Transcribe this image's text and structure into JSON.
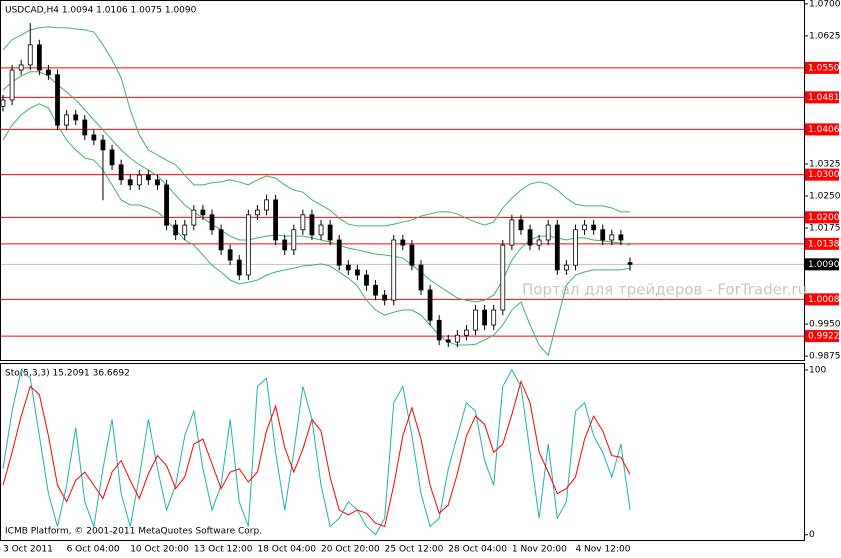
{
  "chart_data": [
    {
      "type": "candlestick",
      "title": "USDCAD,H4  1.0094 1.0106 1.0075 1.0090",
      "categories": [
        "3 Oct 2011",
        null,
        null,
        null,
        null,
        null,
        null,
        "6 Oct 04:00",
        null,
        null,
        null,
        null,
        null,
        null,
        "10 Oct 20:00",
        null,
        null,
        null,
        null,
        null,
        null,
        "13 Oct 12:00",
        null,
        null,
        null,
        null,
        null,
        null,
        "18 Oct 04:00",
        null,
        null,
        null,
        null,
        null,
        null,
        "20 Oct 20:00",
        null,
        null,
        null,
        null,
        null,
        null,
        "25 Oct 12:00",
        null,
        null,
        null,
        null,
        null,
        null,
        "28 Oct 04:00",
        null,
        null,
        null,
        null,
        null,
        null,
        "1 Nov 20:00",
        null,
        null,
        null,
        null,
        null,
        null,
        "4 Nov 12:00",
        null,
        null,
        null,
        null,
        null,
        null
      ],
      "open": [
        1.046,
        1.0475,
        1.0545,
        1.0557,
        1.0604,
        1.0545,
        1.0534,
        1.0416,
        1.044,
        1.0428,
        1.0393,
        1.0381,
        1.0358,
        1.0323,
        1.0288,
        1.0276,
        1.0299,
        1.0288,
        1.0276,
        1.0182,
        1.0159,
        1.0182,
        1.0217,
        1.0206,
        1.0171,
        1.0124,
        1.01,
        1.0065,
        1.0206,
        1.0217,
        1.0241,
        1.0147,
        1.0124,
        1.0171,
        1.0206,
        1.0159,
        1.0182,
        1.0147,
        1.0088,
        1.0077,
        1.0065,
        1.0041,
        1.0018,
        1.0006,
        1.0147,
        1.0135,
        1.0088,
        1.003,
        0.9959,
        0.9913,
        0.9908,
        0.9924,
        0.9936,
        0.9983,
        0.9948,
        0.9983,
        1.0135,
        1.0194,
        1.0171,
        1.0135,
        1.0147,
        1.0182,
        1.0077,
        1.0088,
        1.0171,
        1.0182,
        1.0171,
        1.0147,
        1.0159,
        1.0094
      ],
      "high": [
        1.0487,
        1.0557,
        1.0569,
        1.0655,
        1.0616,
        1.0557,
        1.0546,
        1.0452,
        1.0452,
        1.044,
        1.0405,
        1.0393,
        1.037,
        1.0335,
        1.03,
        1.0311,
        1.0311,
        1.03,
        1.0288,
        1.0194,
        1.0194,
        1.0229,
        1.0229,
        1.0218,
        1.0183,
        1.0136,
        1.0112,
        1.0218,
        1.0229,
        1.0253,
        1.0253,
        1.0159,
        1.0183,
        1.0218,
        1.0218,
        1.0194,
        1.0194,
        1.0159,
        1.01,
        1.0089,
        1.0077,
        1.0053,
        1.003,
        1.0159,
        1.0159,
        1.0147,
        1.01,
        1.0042,
        0.9971,
        0.9925,
        0.9936,
        0.9948,
        0.9995,
        0.9995,
        0.9995,
        1.0147,
        1.0206,
        1.0206,
        1.0183,
        1.0159,
        1.0194,
        1.0194,
        1.01,
        1.0183,
        1.0194,
        1.0194,
        1.0183,
        1.0171,
        1.0171,
        1.0106
      ],
      "low": [
        1.0448,
        1.0463,
        1.0533,
        1.0545,
        1.0533,
        1.0522,
        1.0404,
        1.0404,
        1.0416,
        1.0381,
        1.0369,
        1.024,
        1.0311,
        1.0276,
        1.0264,
        1.0264,
        1.0276,
        1.0264,
        1.017,
        1.0147,
        1.0147,
        1.017,
        1.0194,
        1.0159,
        1.0112,
        1.0088,
        1.0053,
        1.0053,
        1.0194,
        1.0205,
        1.0135,
        1.0112,
        1.0112,
        1.0159,
        1.0147,
        1.0147,
        1.0135,
        1.0076,
        1.0065,
        1.0053,
        1.0029,
        1.0006,
        0.9994,
        0.9994,
        1.0123,
        1.0076,
        1.0018,
        0.9947,
        0.9901,
        0.9896,
        0.9896,
        0.9912,
        0.9924,
        0.9936,
        0.9936,
        0.9971,
        1.0123,
        1.0159,
        1.0123,
        1.0123,
        1.0135,
        1.0065,
        1.0065,
        1.0076,
        1.0159,
        1.0159,
        1.0135,
        1.0135,
        1.0135,
        1.0075
      ],
      "close": [
        1.0475,
        1.0545,
        1.0557,
        1.0604,
        1.0545,
        1.0534,
        1.0416,
        1.044,
        1.0428,
        1.0393,
        1.0381,
        1.0358,
        1.0323,
        1.0288,
        1.0276,
        1.0299,
        1.0288,
        1.0276,
        1.0182,
        1.0159,
        1.0182,
        1.0217,
        1.0206,
        1.0171,
        1.0124,
        1.01,
        1.0065,
        1.0206,
        1.0217,
        1.0241,
        1.0147,
        1.0124,
        1.0171,
        1.0206,
        1.0159,
        1.0182,
        1.0147,
        1.0088,
        1.0077,
        1.0065,
        1.0041,
        1.0018,
        1.0006,
        1.0147,
        1.0135,
        1.0088,
        1.003,
        0.9959,
        0.9913,
        0.9908,
        0.9924,
        0.9936,
        0.9983,
        0.9948,
        0.9983,
        1.0135,
        1.0194,
        1.0171,
        1.0135,
        1.0147,
        1.0182,
        1.0077,
        1.0088,
        1.0171,
        1.0182,
        1.0171,
        1.0147,
        1.0159,
        1.0147,
        1.009
      ],
      "bands": {
        "color": "#3cb371",
        "upper": [
          1.0592,
          1.0616,
          1.0627,
          1.0639,
          1.0644,
          1.0646,
          1.0644,
          1.0644,
          1.0641,
          1.0639,
          1.0634,
          1.0604,
          1.0569,
          1.0527,
          1.0452,
          1.0393,
          1.0358,
          1.0346,
          1.0334,
          1.0323,
          1.0299,
          1.0276,
          1.0276,
          1.0281,
          1.0283,
          1.0288,
          1.0283,
          1.0276,
          1.0288,
          1.0297,
          1.0292,
          1.0276,
          1.0264,
          1.0259,
          1.0241,
          1.0229,
          1.0217,
          1.0198,
          1.0184,
          1.018,
          1.018,
          1.018,
          1.018,
          1.0184,
          1.0189,
          1.0194,
          1.0203,
          1.0208,
          1.0213,
          1.0213,
          1.0208,
          1.0198,
          1.0189,
          1.0182,
          1.0189,
          1.0222,
          1.0245,
          1.0264,
          1.0278,
          1.0283,
          1.0278,
          1.0264,
          1.0245,
          1.0231,
          1.0227,
          1.0227,
          1.0227,
          1.0222,
          1.0213,
          1.0213
        ],
        "middle": [
          1.0498,
          1.0517,
          1.0531,
          1.0541,
          1.0541,
          1.0531,
          1.051,
          1.0494,
          1.0475,
          1.0452,
          1.0428,
          1.0405,
          1.0381,
          1.0358,
          1.0339,
          1.0323,
          1.0311,
          1.0297,
          1.0276,
          1.0252,
          1.0229,
          1.0213,
          1.0198,
          1.0184,
          1.017,
          1.0156,
          1.0147,
          1.0147,
          1.0152,
          1.0156,
          1.0159,
          1.0156,
          1.0156,
          1.0156,
          1.0152,
          1.0147,
          1.0142,
          1.0135,
          1.0128,
          1.0124,
          1.0119,
          1.0114,
          1.0112,
          1.0109,
          1.0105,
          1.0088,
          1.0072,
          1.0053,
          1.0039,
          1.0025,
          1.0011,
          1.0006,
          1.0002,
          1.0006,
          1.0018,
          1.0053,
          1.01,
          1.0128,
          1.0147,
          1.0156,
          1.0156,
          1.0152,
          1.0147,
          1.0152,
          1.0152,
          1.0147,
          1.0145,
          1.0142,
          1.014,
          1.0135
        ],
        "lower": [
          1.0381,
          1.0416,
          1.044,
          1.0456,
          1.0466,
          1.0456,
          1.0416,
          1.0381,
          1.0358,
          1.0339,
          1.0334,
          1.0311,
          1.0276,
          1.0241,
          1.0229,
          1.0229,
          1.0222,
          1.0213,
          1.0194,
          1.017,
          1.0147,
          1.0135,
          1.0112,
          1.0088,
          1.0072,
          1.0053,
          1.0044,
          1.0048,
          1.0053,
          1.0065,
          1.0072,
          1.0077,
          1.0081,
          1.0086,
          1.0088,
          1.0091,
          1.0086,
          1.0072,
          1.0058,
          1.0039,
          1.0006,
          0.9983,
          0.9971,
          0.9978,
          0.9983,
          0.9983,
          0.9971,
          0.9948,
          0.9924,
          0.9908,
          0.9901,
          0.9901,
          0.9903,
          0.9913,
          0.9924,
          0.9948,
          0.9983,
          1.0002,
          0.9948,
          0.9901,
          0.9877,
          0.9959,
          1.0041,
          1.0065,
          1.0072,
          1.0077,
          1.0077,
          1.0077,
          1.0077,
          1.0081
        ]
      },
      "levels": [
        {
          "value": 1.055,
          "label": "1.0550"
        },
        {
          "value": 1.0481,
          "label": "1.0481"
        },
        {
          "value": 1.0406,
          "label": "1.0406"
        },
        {
          "value": 1.03,
          "label": "1.0300"
        },
        {
          "value": 1.02,
          "label": "1.0200"
        },
        {
          "value": 1.0138,
          "label": "1.0138"
        },
        {
          "value": 1.0008,
          "label": "1.0008"
        },
        {
          "value": 0.9922,
          "label": "0.9922"
        }
      ],
      "level_color": "#ff0000",
      "last_price": {
        "value": 1.009,
        "label": "1.0090"
      },
      "ylim": [
        0.9866,
        1.0709
      ],
      "yticks": [
        {
          "value": 1.07,
          "label": "1.0700"
        },
        1.0625,
        1.0325,
        {
          "value": 1.025,
          "label": "1.0250"
        },
        1.0175,
        {
          "value": 0.995,
          "label": "0.9950"
        },
        0.9875
      ]
    },
    {
      "type": "line",
      "title": "Sto(5,3,3) 15.2091 36.6692",
      "series": [
        {
          "color": "#20b2aa",
          "values": [
            40,
            75,
            100,
            95,
            60,
            25,
            5,
            30,
            65,
            20,
            5,
            40,
            70,
            25,
            5,
            35,
            70,
            40,
            15,
            30,
            60,
            75,
            40,
            15,
            30,
            70,
            20,
            5,
            90,
            95,
            50,
            15,
            50,
            90,
            70,
            30,
            5,
            10,
            20,
            15,
            5,
            0,
            10,
            80,
            90,
            60,
            25,
            5,
            10,
            40,
            60,
            80,
            75,
            45,
            30,
            90,
            100,
            90,
            50,
            10,
            55,
            10,
            20,
            75,
            80,
            60,
            50,
            35,
            55,
            15.2091
          ]
        },
        {
          "color": "#ff0000",
          "values": [
            30,
            50,
            72,
            90,
            85,
            60,
            30,
            20,
            33,
            38,
            30,
            22,
            38,
            45,
            33,
            22,
            37,
            48,
            42,
            28,
            35,
            55,
            58,
            43,
            28,
            38,
            40,
            32,
            38,
            63,
            78,
            53,
            38,
            52,
            70,
            63,
            35,
            15,
            12,
            15,
            13,
            7,
            5,
            30,
            60,
            77,
            58,
            30,
            13,
            18,
            37,
            60,
            72,
            67,
            50,
            55,
            73,
            93,
            80,
            50,
            38,
            25,
            28,
            35,
            58,
            72,
            63,
            48,
            47,
            36.6692
          ]
        }
      ],
      "ylim": [
        -3.2,
        103
      ],
      "yticks": [
        0,
        100
      ]
    }
  ],
  "watermark": "Портал для трейдеров - ForTrader.ru",
  "copyright": "ICMB Platform, © 2001-2011 MetaQuotes Software Corp."
}
